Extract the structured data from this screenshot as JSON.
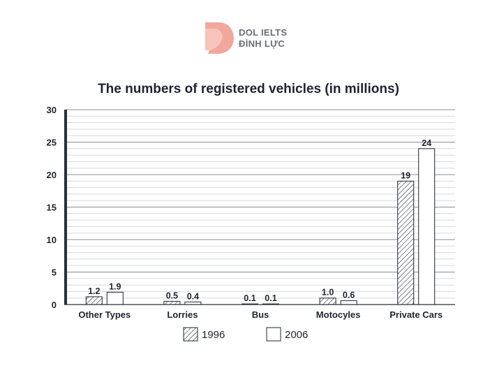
{
  "logo": {
    "line1": "DOL IELTS",
    "line2": "ĐÌNH LỰC",
    "brand_color": "#f2a79d"
  },
  "chart_data": {
    "type": "bar",
    "title": "The numbers of registered vehicles (in millions)",
    "xlabel": "",
    "ylabel": "",
    "categories": [
      "Other Types",
      "Lorries",
      "Bus",
      "Motocyles",
      "Private Cars"
    ],
    "series": [
      {
        "name": "1996",
        "values": [
          1.2,
          0.5,
          0.1,
          1.0,
          19
        ],
        "labels": [
          "1.2",
          "0.5",
          "0.1",
          "1.0",
          "19"
        ],
        "fill": "hatched"
      },
      {
        "name": "2006",
        "values": [
          1.9,
          0.4,
          0.1,
          0.6,
          24
        ],
        "labels": [
          "1.9",
          "0.4",
          "0.1",
          "0.6",
          "24"
        ],
        "fill": "white"
      }
    ],
    "ylim": [
      0,
      30
    ],
    "yticks": [
      0,
      5,
      10,
      15,
      20,
      25,
      30
    ],
    "minor_grid_step": 1,
    "grid": true,
    "legend_position": "bottom-center",
    "colors": {
      "axis": "#2b2f3a",
      "major_grid": "#8a8d94",
      "minor_grid": "#d8d9dc",
      "bar_stroke": "#1f2330"
    }
  }
}
